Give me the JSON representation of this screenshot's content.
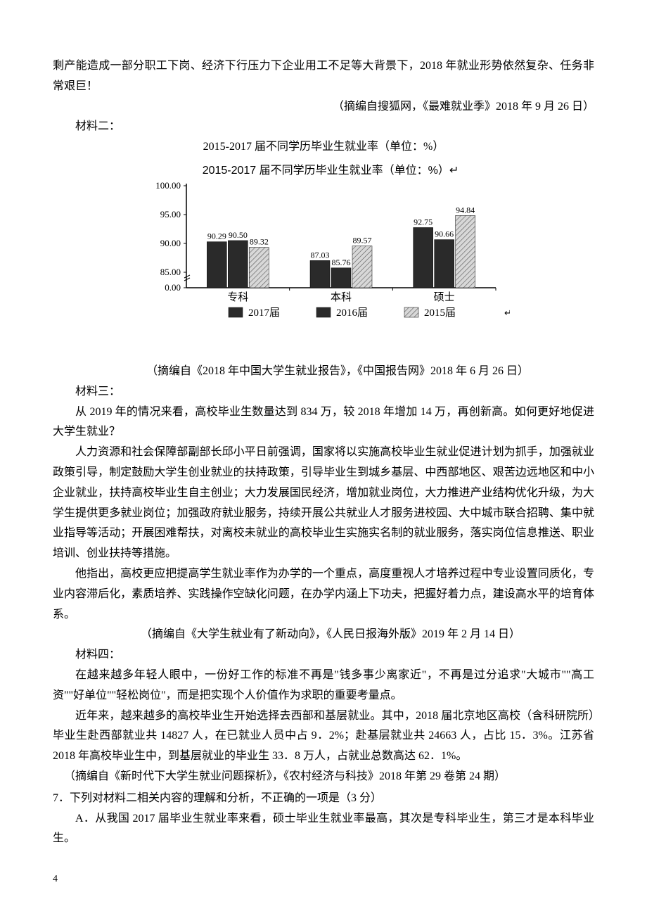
{
  "para1": "剩产能造成一部分职工下岗、经济下行压力下企业用工不足等大背景下，2018 年就业形势依然复杂、任务非常艰巨！",
  "source1": "（摘编自搜狐网，《最难就业季》2018 年 9 月 26 日）",
  "material2_label": "材料二：",
  "chart_title1": "2015-2017 届不同学历毕业生就业率（单位：%）",
  "chart": {
    "title_embedded": "2015-2017 届不同学历毕业生就业率（单位：%）↵",
    "categories": [
      "专科",
      "本科",
      "硕士"
    ],
    "series": [
      {
        "name": "2017届",
        "values": [
          90.29,
          87.03,
          92.75
        ],
        "fill": "solid"
      },
      {
        "name": "2016届",
        "values": [
          90.5,
          85.76,
          90.66
        ],
        "fill": "solid"
      },
      {
        "name": "2015届",
        "values": [
          89.32,
          89.57,
          94.84
        ],
        "fill": "hatched"
      }
    ],
    "ylim": [
      0,
      100
    ],
    "yticks": [
      0.0,
      85.0,
      90.0,
      95.0,
      100.0
    ],
    "ytick_labels": [
      "0.00",
      "85.00",
      "90.00",
      "95.00",
      "100.00"
    ],
    "bar_labels": [
      [
        "90.29",
        "90.50",
        "89.32"
      ],
      [
        "87.03",
        "85.76",
        "89.57"
      ],
      [
        "92.75",
        "90.66",
        "94.84"
      ]
    ],
    "legend": [
      "2017届",
      "2016届",
      "2015届"
    ],
    "axis_color": "#000000",
    "bar_color": "#2a2a2a",
    "hatched_color": "#6a6a6a",
    "background": "#ffffff",
    "label_fontsize": 13
  },
  "source2": "（摘编自《2018 年中国大学生就业报告》，《中国报告网》2018 年 6 月 26 日）",
  "material3_label": "材料三：",
  "m3_p1": "从 2019 年的情况来看，高校毕业生数量达到 834 万，较 2018 年增加 14 万，再创新高。如何更好地促进大学生就业？",
  "m3_p2": "人力资源和社会保障部副部长邱小平日前强调，国家将以实施高校毕业生就业促进计划为抓手，加强就业政策引导，制定鼓励大学生创业就业的扶持政策，引导毕业生到城乡基层、中西部地区、艰苦边远地区和中小企业就业，扶持高校毕业生自主创业；大力发展国民经济，增加就业岗位，大力推进产业结构优化升级，为大学生提供更多就业岗位；加强政府就业服务，持续开展公共就业人才服务进校园、大中城市联合招聘、集中就业指导等活动；开展困难帮扶，对离校未就业的高校毕业生实施实名制的就业服务，落实岗位信息推送、职业培训、创业扶持等措施。",
  "m3_p3": "他指出，高校更应把提高学生就业率作为办学的一个重点，高度重视人才培养过程中专业设置同质化，专业内容滞后化，素质培养、实践操作空缺化问题，在办学内涵上下功夫，把握好着力点，建设高水平的培育体系。",
  "source3": "（摘编自《大学生就业有了新动向》，《人民日报海外版》2019 年 2 月 14 日）",
  "material4_label": "材料四：",
  "m4_p1": "在越来越多年轻人眼中，一份好工作的标准不再是\"钱多事少离家近\"，不再是过分追求\"大城市\"\"高工资\"\"好单位\"\"轻松岗位\"，而是把实现个人价值作为求职的重要考量点。",
  "m4_p2": "近年来，越来越多的高校毕业生开始选择去西部和基层就业。其中，2018 届北京地区高校（含科研院所）毕业生赴西部就业共 14827 人，在已就业人员中占 9．2%；赴基层就业共 24663 人，占比 15．3%。江苏省 2018 年高校毕业生中，到基层就业的毕业生 33．8 万人，占就业总数高达 62．1%。",
  "source4": "（摘编自《新时代下大学生就业问题探析》，《农村经济与科技》2018 年第 29 卷第 24 期）",
  "q7": "7．下列对材料二相关内容的理解和分析，不正确的一项是（3 分）",
  "q7a": "A．从我国 2017 届毕业生就业率来看，硕士毕业生就业率最高，其次是专科毕业生，第三才是本科毕业生。",
  "page_num": "4"
}
